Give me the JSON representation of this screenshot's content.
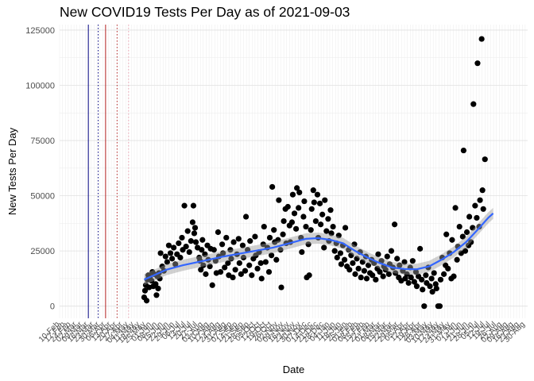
{
  "chart_data": {
    "type": "scatter",
    "title": "New COVID19 Tests Per Day as of 2021-09-03",
    "xlabel": "Date",
    "ylabel": "New Tests Per Day",
    "yticks": [
      0,
      25000,
      50000,
      75000,
      100000,
      125000
    ],
    "ylim": [
      -5500,
      127500
    ],
    "xlim_day_index": [
      0,
      570
    ],
    "x_origin_date": "2020-02-10",
    "x_tick_labels_note": "rotated date tick labels at the bottom are overlapped and largely illegible",
    "x_tick_labels": [
      "10-Feb",
      "17-Feb",
      "24-Feb",
      "02-Mar",
      "09-Mar",
      "16-Mar",
      "23-Mar",
      "30-Mar",
      "06-Apr",
      "13-Apr",
      "20-Apr",
      "27-Apr",
      "04-May",
      "11-May",
      "18-May",
      "25-May",
      "01-Jun",
      "08-Jun",
      "15-Jun",
      "22-Jun",
      "29-Jun",
      "06-Jul",
      "13-Jul",
      "20-Jul",
      "27-Jul",
      "03-Aug",
      "10-Aug",
      "17-Aug",
      "24-Aug",
      "31-Aug",
      "07-Sep",
      "14-Sep",
      "21-Sep",
      "28-Sep",
      "05-Oct",
      "12-Oct",
      "19-Oct",
      "26-Oct",
      "02-Nov",
      "09-Nov",
      "16-Nov",
      "23-Nov",
      "30-Nov",
      "07-Dec",
      "14-Dec",
      "21-Dec",
      "28-Dec",
      "04-Jan",
      "11-Jan",
      "18-Jan",
      "25-Jan",
      "01-Feb",
      "08-Feb",
      "15-Feb",
      "22-Feb",
      "01-Mar",
      "08-Mar",
      "15-Mar",
      "22-Mar",
      "29-Mar",
      "05-Apr",
      "12-Apr",
      "19-Apr",
      "26-Apr",
      "03-May",
      "10-May",
      "17-May",
      "24-May",
      "31-May",
      "07-Jun",
      "14-Jun",
      "21-Jun",
      "28-Jun",
      "05-Jul",
      "12-Jul",
      "19-Jul",
      "26-Jul",
      "02-Aug",
      "09-Aug",
      "16-Aug",
      "23-Aug",
      "30-Aug",
      "06-Sep",
      "13-Sep",
      "20-Sep",
      "27-Sep"
    ],
    "reference_lines": [
      {
        "name": "solid-navy-line",
        "day": 35,
        "color": "#000080",
        "style": "solid"
      },
      {
        "name": "dotted-navy-line",
        "day": 47,
        "color": "#000080",
        "style": "dotted"
      },
      {
        "name": "solid-red-line",
        "day": 56,
        "color": "#b22222",
        "style": "solid"
      },
      {
        "name": "dotted-red-line",
        "day": 70,
        "color": "#b22222",
        "style": "dotted"
      },
      {
        "name": "dotted-pink-line",
        "day": 84,
        "color": "#e8a0b0",
        "style": "dotted"
      }
    ],
    "smooth_color": "#3366ff",
    "point_color": "#000000",
    "smooth": [
      [
        103,
        12000
      ],
      [
        115,
        14000
      ],
      [
        130,
        16500
      ],
      [
        150,
        18500
      ],
      [
        175,
        20500
      ],
      [
        200,
        22500
      ],
      [
        230,
        24500
      ],
      [
        260,
        26500
      ],
      [
        280,
        28500
      ],
      [
        300,
        30500
      ],
      [
        315,
        30800
      ],
      [
        330,
        30000
      ],
      [
        345,
        28500
      ],
      [
        360,
        25000
      ],
      [
        375,
        22000
      ],
      [
        390,
        19500
      ],
      [
        405,
        17500
      ],
      [
        420,
        16800
      ],
      [
        435,
        16700
      ],
      [
        450,
        18000
      ],
      [
        465,
        21000
      ],
      [
        480,
        24500
      ],
      [
        495,
        29000
      ],
      [
        510,
        35000
      ],
      [
        522,
        40000
      ],
      [
        528,
        42000
      ]
    ],
    "points": [
      [
        103,
        4000
      ],
      [
        104,
        7000
      ],
      [
        105,
        9500
      ],
      [
        106,
        2500
      ],
      [
        107,
        12000
      ],
      [
        108,
        14000
      ],
      [
        109,
        8500
      ],
      [
        110,
        13000
      ],
      [
        112,
        11500
      ],
      [
        113,
        15500
      ],
      [
        114,
        9000
      ],
      [
        115,
        14500
      ],
      [
        117,
        10000
      ],
      [
        118,
        5000
      ],
      [
        119,
        13500
      ],
      [
        120,
        8000
      ],
      [
        121,
        15000
      ],
      [
        122,
        12500
      ],
      [
        123,
        24000
      ],
      [
        125,
        18000
      ],
      [
        127,
        16000
      ],
      [
        129,
        22500
      ],
      [
        131,
        20000
      ],
      [
        133,
        27500
      ],
      [
        135,
        24000
      ],
      [
        137,
        21500
      ],
      [
        139,
        26500
      ],
      [
        141,
        19000
      ],
      [
        143,
        23500
      ],
      [
        145,
        28500
      ],
      [
        147,
        22000
      ],
      [
        149,
        31000
      ],
      [
        150,
        25500
      ],
      [
        152,
        45500
      ],
      [
        154,
        27000
      ],
      [
        156,
        34000
      ],
      [
        158,
        24500
      ],
      [
        160,
        29500
      ],
      [
        162,
        38000
      ],
      [
        163,
        45500
      ],
      [
        164,
        33000
      ],
      [
        165,
        35500
      ],
      [
        166,
        29000
      ],
      [
        168,
        26500
      ],
      [
        170,
        22000
      ],
      [
        171,
        20500
      ],
      [
        172,
        16500
      ],
      [
        173,
        25500
      ],
      [
        174,
        30000
      ],
      [
        175,
        18500
      ],
      [
        177,
        23500
      ],
      [
        178,
        14500
      ],
      [
        180,
        27500
      ],
      [
        181,
        21000
      ],
      [
        183,
        18000
      ],
      [
        184,
        26000
      ],
      [
        186,
        9500
      ],
      [
        188,
        25500
      ],
      [
        190,
        20500
      ],
      [
        191,
        15000
      ],
      [
        193,
        33500
      ],
      [
        194,
        22500
      ],
      [
        196,
        15500
      ],
      [
        198,
        28000
      ],
      [
        199,
        24000
      ],
      [
        201,
        17500
      ],
      [
        203,
        31000
      ],
      [
        205,
        19500
      ],
      [
        206,
        14000
      ],
      [
        208,
        25500
      ],
      [
        209,
        21500
      ],
      [
        211,
        13000
      ],
      [
        212,
        29000
      ],
      [
        214,
        16500
      ],
      [
        216,
        23500
      ],
      [
        218,
        30500
      ],
      [
        219,
        19500
      ],
      [
        221,
        14500
      ],
      [
        223,
        27500
      ],
      [
        224,
        22000
      ],
      [
        226,
        16000
      ],
      [
        227,
        40500
      ],
      [
        229,
        25500
      ],
      [
        231,
        18500
      ],
      [
        232,
        29500
      ],
      [
        234,
        14000
      ],
      [
        236,
        21500
      ],
      [
        238,
        31500
      ],
      [
        239,
        23000
      ],
      [
        241,
        17000
      ],
      [
        243,
        24500
      ],
      [
        245,
        19500
      ],
      [
        246,
        12500
      ],
      [
        248,
        28000
      ],
      [
        249,
        36000
      ],
      [
        251,
        20000
      ],
      [
        253,
        26500
      ],
      [
        255,
        15500
      ],
      [
        256,
        31000
      ],
      [
        258,
        23000
      ],
      [
        259,
        54000
      ],
      [
        261,
        34500
      ],
      [
        262,
        29000
      ],
      [
        264,
        21000
      ],
      [
        266,
        30000
      ],
      [
        267,
        48000
      ],
      [
        269,
        25500
      ],
      [
        270,
        8500
      ],
      [
        272,
        32500
      ],
      [
        273,
        38500
      ],
      [
        275,
        44000
      ],
      [
        276,
        28500
      ],
      [
        278,
        45000
      ],
      [
        280,
        36500
      ],
      [
        281,
        29000
      ],
      [
        283,
        38000
      ],
      [
        284,
        50500
      ],
      [
        286,
        42000
      ],
      [
        288,
        35000
      ],
      [
        289,
        53500
      ],
      [
        291,
        44500
      ],
      [
        292,
        51500
      ],
      [
        294,
        31000
      ],
      [
        295,
        24500
      ],
      [
        297,
        40500
      ],
      [
        298,
        47500
      ],
      [
        300,
        36000
      ],
      [
        301,
        13000
      ],
      [
        303,
        28000
      ],
      [
        304,
        14000
      ],
      [
        306,
        34500
      ],
      [
        307,
        44000
      ],
      [
        309,
        52500
      ],
      [
        310,
        47000
      ],
      [
        312,
        38500
      ],
      [
        314,
        50500
      ],
      [
        315,
        31000
      ],
      [
        317,
        46500
      ],
      [
        318,
        37000
      ],
      [
        320,
        41500
      ],
      [
        322,
        26500
      ],
      [
        323,
        48000
      ],
      [
        325,
        34000
      ],
      [
        327,
        39500
      ],
      [
        328,
        29500
      ],
      [
        330,
        43500
      ],
      [
        331,
        33000
      ],
      [
        333,
        36000
      ],
      [
        335,
        25000
      ],
      [
        337,
        28500
      ],
      [
        338,
        22000
      ],
      [
        340,
        32000
      ],
      [
        342,
        24000
      ],
      [
        343,
        19000
      ],
      [
        345,
        27500
      ],
      [
        347,
        21000
      ],
      [
        348,
        35500
      ],
      [
        350,
        18000
      ],
      [
        352,
        25500
      ],
      [
        353,
        16500
      ],
      [
        355,
        23000
      ],
      [
        357,
        19500
      ],
      [
        359,
        28000
      ],
      [
        360,
        14500
      ],
      [
        362,
        21500
      ],
      [
        364,
        17000
      ],
      [
        366,
        24500
      ],
      [
        367,
        13000
      ],
      [
        369,
        20000
      ],
      [
        371,
        16000
      ],
      [
        373,
        22500
      ],
      [
        374,
        12500
      ],
      [
        376,
        18500
      ],
      [
        378,
        15000
      ],
      [
        380,
        21000
      ],
      [
        381,
        14000
      ],
      [
        383,
        19500
      ],
      [
        385,
        12000
      ],
      [
        387,
        17000
      ],
      [
        388,
        23500
      ],
      [
        390,
        15500
      ],
      [
        392,
        20500
      ],
      [
        394,
        13500
      ],
      [
        395,
        18000
      ],
      [
        397,
        16500
      ],
      [
        399,
        22500
      ],
      [
        401,
        14500
      ],
      [
        402,
        19000
      ],
      [
        404,
        25000
      ],
      [
        406,
        17500
      ],
      [
        408,
        37000
      ],
      [
        409,
        15000
      ],
      [
        411,
        21500
      ],
      [
        413,
        13000
      ],
      [
        414,
        18500
      ],
      [
        416,
        11500
      ],
      [
        418,
        16000
      ],
      [
        420,
        20000
      ],
      [
        421,
        12500
      ],
      [
        423,
        14500
      ],
      [
        425,
        10500
      ],
      [
        427,
        17500
      ],
      [
        428,
        13000
      ],
      [
        430,
        20500
      ],
      [
        432,
        11000
      ],
      [
        434,
        15500
      ],
      [
        435,
        9000
      ],
      [
        437,
        13500
      ],
      [
        439,
        26000
      ],
      [
        441,
        12000
      ],
      [
        442,
        7500
      ],
      [
        444,
        0
      ],
      [
        446,
        14000
      ],
      [
        447,
        10500
      ],
      [
        449,
        17500
      ],
      [
        451,
        9000
      ],
      [
        453,
        12500
      ],
      [
        454,
        6500
      ],
      [
        456,
        15000
      ],
      [
        458,
        10000
      ],
      [
        459,
        8000
      ],
      [
        461,
        0
      ],
      [
        463,
        0
      ],
      [
        464,
        12000
      ],
      [
        466,
        22000
      ],
      [
        468,
        14500
      ],
      [
        470,
        18500
      ],
      [
        471,
        32500
      ],
      [
        473,
        17000
      ],
      [
        475,
        24000
      ],
      [
        477,
        12500
      ],
      [
        478,
        30000
      ],
      [
        480,
        13500
      ],
      [
        482,
        44500
      ],
      [
        484,
        21000
      ],
      [
        485,
        27000
      ],
      [
        487,
        36000
      ],
      [
        489,
        24000
      ],
      [
        491,
        31500
      ],
      [
        492,
        70500
      ],
      [
        494,
        25000
      ],
      [
        496,
        33500
      ],
      [
        498,
        27500
      ],
      [
        499,
        40500
      ],
      [
        501,
        29000
      ],
      [
        503,
        35500
      ],
      [
        504,
        91500
      ],
      [
        506,
        45500
      ],
      [
        508,
        40000
      ],
      [
        509,
        110000
      ],
      [
        511,
        36000
      ],
      [
        512,
        48000
      ],
      [
        514,
        121000
      ],
      [
        515,
        52500
      ],
      [
        516,
        44000
      ],
      [
        518,
        66500
      ]
    ]
  }
}
